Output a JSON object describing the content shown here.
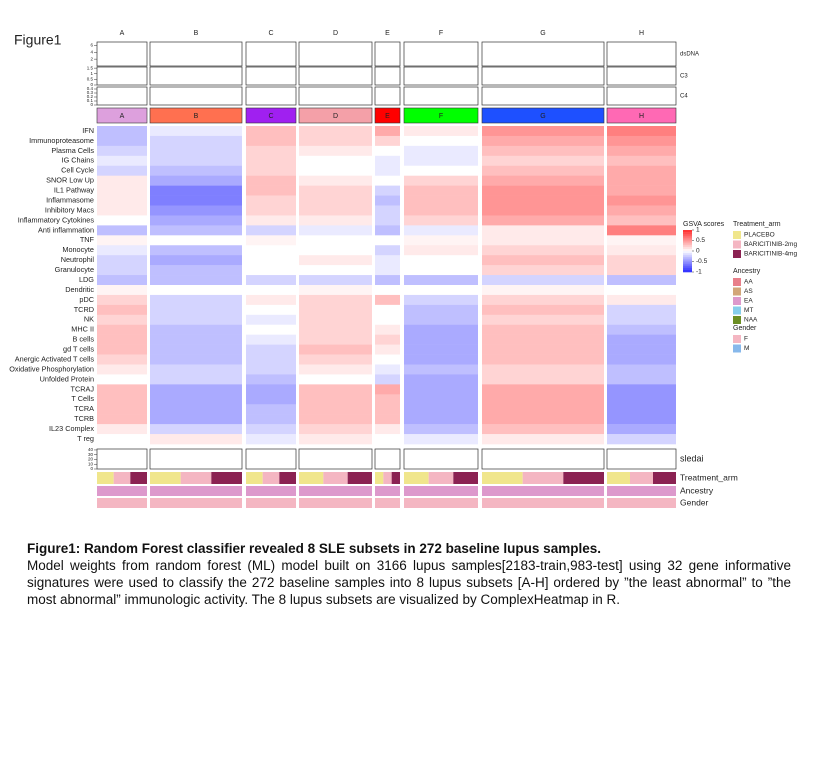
{
  "figure_label": "Figure1",
  "chart_data": {
    "type": "heatmap",
    "columns": [
      "A",
      "B",
      "C",
      "D",
      "E",
      "F",
      "G",
      "H"
    ],
    "column_colors": [
      "#dda0dd",
      "#ff7050",
      "#a020f0",
      "#f4a0a8",
      "#ff0000",
      "#00ff00",
      "#1e50ff",
      "#ff69b4"
    ],
    "rows": [
      "IFN",
      "Immunoproteasome",
      "Plasma Cells",
      "IG Chains",
      "Cell Cycle",
      "SNOR Low Up",
      "IL1 Pathway",
      "Inflammasome",
      "Inhibitory Macs",
      "Inflammatory Cytokines",
      "Anti inflammation",
      "TNF",
      "Monocyte",
      "Neutrophil",
      "Granulocyte",
      "LDG",
      "Dendritic",
      "pDC",
      "TCRD",
      "NK",
      "MHC II",
      "B cells",
      "gd T cells",
      "Anergic Activated T cells",
      "Oxidative Phosphorylation",
      "Unfolded Protein",
      "TCRAJ",
      "T Cells",
      "TCRA",
      "TCRB",
      "IL23 Complex",
      "T reg"
    ],
    "values": [
      [
        -0.3,
        -0.1,
        0.3,
        0.2,
        0.4,
        0.1,
        0.5,
        0.6
      ],
      [
        -0.3,
        -0.2,
        0.3,
        0.2,
        0.2,
        0,
        0.4,
        0.5
      ],
      [
        -0.2,
        -0.2,
        0.2,
        0.1,
        0,
        -0.1,
        0.3,
        0.4
      ],
      [
        -0.1,
        -0.2,
        0.2,
        0,
        -0.1,
        -0.1,
        0.2,
        0.3
      ],
      [
        -0.2,
        -0.3,
        0.2,
        0,
        -0.1,
        0,
        0.3,
        0.4
      ],
      [
        0.1,
        -0.4,
        0.3,
        0.1,
        0,
        0.2,
        0.4,
        0.4
      ],
      [
        0.1,
        -0.6,
        0.3,
        0.2,
        -0.2,
        0.3,
        0.5,
        0.4
      ],
      [
        0.1,
        -0.6,
        0.2,
        0.2,
        -0.3,
        0.3,
        0.5,
        0.5
      ],
      [
        0.1,
        -0.5,
        0.2,
        0.2,
        -0.2,
        0.3,
        0.5,
        0.4
      ],
      [
        0,
        -0.4,
        0.1,
        0.1,
        -0.2,
        0.2,
        0.4,
        0.3
      ],
      [
        -0.3,
        -0.3,
        -0.2,
        -0.1,
        -0.3,
        -0.1,
        0.1,
        0.6
      ],
      [
        0.05,
        0,
        0.05,
        0,
        0,
        0.05,
        0.1,
        0.05
      ],
      [
        -0.1,
        -0.3,
        0,
        0,
        -0.2,
        0.1,
        0.2,
        0.1
      ],
      [
        -0.2,
        -0.4,
        0,
        0.1,
        -0.1,
        0,
        0.3,
        0.2
      ],
      [
        -0.2,
        -0.3,
        0,
        0,
        -0.1,
        0,
        0.2,
        0.2
      ],
      [
        -0.3,
        -0.3,
        -0.2,
        -0.2,
        -0.3,
        -0.3,
        -0.2,
        -0.3
      ],
      [
        0.05,
        0,
        0,
        0.05,
        0,
        0,
        0.05,
        0
      ],
      [
        0.2,
        -0.2,
        0.1,
        0.2,
        0.3,
        -0.2,
        0.2,
        0.1
      ],
      [
        0.3,
        -0.2,
        0,
        0.2,
        0,
        -0.3,
        0.3,
        -0.2
      ],
      [
        0.2,
        -0.2,
        -0.1,
        0.2,
        0,
        -0.3,
        0.2,
        -0.2
      ],
      [
        0.3,
        -0.3,
        0,
        0.2,
        0.1,
        -0.4,
        0.3,
        -0.3
      ],
      [
        0.3,
        -0.3,
        -0.1,
        0.2,
        0.2,
        -0.4,
        0.3,
        -0.4
      ],
      [
        0.3,
        -0.3,
        -0.2,
        0.3,
        0.1,
        -0.4,
        0.3,
        -0.4
      ],
      [
        0.2,
        -0.3,
        -0.2,
        0.2,
        0,
        -0.4,
        0.3,
        -0.4
      ],
      [
        0.1,
        -0.2,
        -0.2,
        0.1,
        -0.1,
        -0.3,
        0.2,
        -0.3
      ],
      [
        0,
        -0.2,
        -0.3,
        0,
        -0.2,
        -0.4,
        0.2,
        -0.3
      ],
      [
        0.3,
        -0.4,
        -0.4,
        0.3,
        0.4,
        -0.4,
        0.4,
        -0.5
      ],
      [
        0.3,
        -0.4,
        -0.4,
        0.3,
        0.3,
        -0.4,
        0.4,
        -0.5
      ],
      [
        0.3,
        -0.4,
        -0.3,
        0.3,
        0.3,
        -0.4,
        0.4,
        -0.5
      ],
      [
        0.3,
        -0.4,
        -0.3,
        0.3,
        0.3,
        -0.4,
        0.4,
        -0.5
      ],
      [
        0.1,
        -0.2,
        -0.2,
        0.2,
        0.1,
        -0.3,
        0.3,
        -0.4
      ],
      [
        0,
        0.1,
        -0.1,
        0.1,
        0,
        -0.1,
        0.1,
        -0.2
      ]
    ],
    "colorbar": {
      "title": "GSVA scores",
      "lim": [
        -1,
        1
      ],
      "ticks": [
        1,
        0.5,
        0,
        -0.5,
        -1
      ],
      "colors": [
        "#2a2aff",
        "#ffffff",
        "#ff2a2a"
      ]
    },
    "tracks": [
      {
        "name": "dsDNA",
        "yticks": [
          2,
          4,
          6
        ],
        "ylim": [
          0,
          7
        ]
      },
      {
        "name": "C3",
        "yticks": [
          0,
          0.5,
          1,
          1.5
        ],
        "ylim": [
          0,
          1.6
        ]
      },
      {
        "name": "C4",
        "yticks": [
          0,
          0.1,
          0.2,
          0.3,
          0.4
        ],
        "ylim": [
          0,
          0.45
        ]
      },
      {
        "name": "sledai",
        "yticks": [
          0,
          10,
          20,
          30,
          40
        ],
        "ylim": [
          0,
          42
        ]
      }
    ],
    "annotations": [
      {
        "name": "Treatment_arm",
        "legend": [
          {
            "label": "PLACEBO",
            "color": "#f0e68c"
          },
          {
            "label": "BARICITINIB-2mg",
            "color": "#f4b6c2"
          },
          {
            "label": "BARICITINIB-4mg",
            "color": "#8b2252"
          }
        ]
      },
      {
        "name": "Ancestry",
        "legend": [
          {
            "label": "AA",
            "color": "#e87f8a"
          },
          {
            "label": "AS",
            "color": "#d2a679"
          },
          {
            "label": "EA",
            "color": "#dd99cc"
          },
          {
            "label": "MT",
            "color": "#87ceeb"
          },
          {
            "label": "NAA",
            "color": "#6b8e23"
          }
        ]
      },
      {
        "name": "Gender",
        "legend": [
          {
            "label": "F",
            "color": "#f4b6c2"
          },
          {
            "label": "M",
            "color": "#87b8eb"
          }
        ]
      }
    ]
  },
  "caption": {
    "title": "Figure1: Random Forest classifier revealed 8 SLE subsets in 272 baseline lupus samples.",
    "body": "Model weights from random forest (ML) model built on 3166 lupus samples[2183-train,983-test] using 32 gene informative signatures were used to classify the 272 baseline samples into 8 lupus subsets [A-H] ordered by ”the least abnormal” to ”the most abnormal” immunologic activity. The 8 lupus subsets are visualized by ComplexHeatmap in R."
  }
}
